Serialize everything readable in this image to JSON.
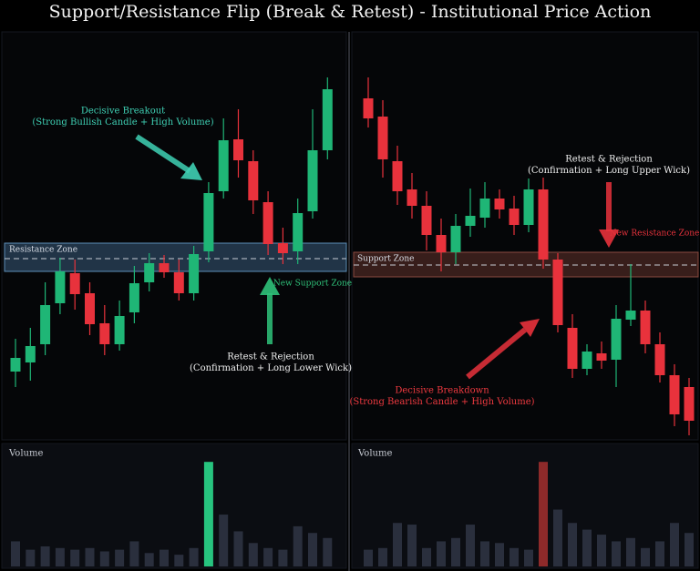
{
  "title": "Support/Resistance Flip (Break & Retest) - Institutional Price Action",
  "chart_data": [
    {
      "type": "candlestick",
      "ylim": [
        0,
        400
      ],
      "up_color": "#1fb676",
      "down_color": "#e8323c",
      "open": [
        72,
        82,
        102,
        147,
        180,
        158,
        125,
        102,
        137,
        170,
        191,
        181,
        158,
        204,
        270,
        327,
        303,
        258,
        213,
        204,
        248,
        315
      ],
      "close": [
        87,
        100,
        145,
        182,
        157,
        124,
        102,
        133,
        169,
        191,
        181,
        158,
        201,
        268,
        326,
        304,
        260,
        212,
        202,
        246,
        315,
        382
      ],
      "high": [
        108,
        120,
        170,
        197,
        195,
        170,
        145,
        150,
        188,
        202,
        200,
        195,
        210,
        280,
        350,
        360,
        315,
        270,
        230,
        262,
        360,
        395
      ],
      "low": [
        55,
        62,
        90,
        135,
        140,
        112,
        90,
        95,
        125,
        160,
        175,
        150,
        150,
        192,
        262,
        285,
        245,
        200,
        190,
        190,
        240,
        305
      ],
      "zone": {
        "label": "Resistance Zone",
        "new_label": "New Support Zone",
        "low": 182,
        "high": 213,
        "level": 196,
        "fill": "rgba(80,130,175,0.38)",
        "stroke": "#5d8fb8",
        "label_color": "#d8dde6",
        "new_label_color": "#2fc27a"
      },
      "annotations": [
        {
          "lines": [
            "Decisive Breakout",
            "(Strong Bullish Candle + High Volume)"
          ],
          "color": "#3fd0b4"
        },
        {
          "lines": [
            "Retest & Rejection",
            "(Confirmation + Long Lower Wick)"
          ],
          "color": "#f0f0f0"
        }
      ],
      "volume": {
        "label": "Volume",
        "ylim": [
          0,
          135
        ],
        "values": [
          30,
          20,
          24,
          22,
          20,
          22,
          18,
          20,
          30,
          16,
          20,
          14,
          22,
          125,
          62,
          42,
          28,
          22,
          20,
          48,
          40,
          34
        ],
        "colors": [
          "#2a2f3d",
          "#2a2f3d",
          "#2a2f3d",
          "#2a2f3d",
          "#2a2f3d",
          "#2a2f3d",
          "#2a2f3d",
          "#2a2f3d",
          "#2a2f3d",
          "#2a2f3d",
          "#2a2f3d",
          "#2a2f3d",
          "#2a2f3d",
          "#27c47f",
          "#2a2f3d",
          "#2a2f3d",
          "#2a2f3d",
          "#2a2f3d",
          "#2a2f3d",
          "#2a2f3d",
          "#2a2f3d",
          "#2a2f3d"
        ]
      }
    },
    {
      "type": "candlestick",
      "ylim": [
        0,
        400
      ],
      "up_color": "#1fb676",
      "down_color": "#e8323c",
      "open": [
        372,
        352,
        303,
        272,
        254,
        222,
        203,
        232,
        241,
        262,
        251,
        233,
        272,
        195,
        120,
        75,
        92,
        85,
        129,
        139,
        102,
        68,
        55
      ],
      "close": [
        350,
        305,
        270,
        254,
        222,
        203,
        232,
        243,
        262,
        250,
        233,
        272,
        195,
        123,
        75,
        94,
        84,
        130,
        139,
        102,
        68,
        25,
        18
      ],
      "high": [
        395,
        370,
        320,
        290,
        270,
        240,
        245,
        273,
        280,
        272,
        265,
        284,
        285,
        202,
        135,
        102,
        105,
        145,
        190,
        150,
        115,
        80,
        65
      ],
      "low": [
        340,
        285,
        255,
        240,
        205,
        182,
        190,
        220,
        230,
        240,
        222,
        225,
        185,
        115,
        65,
        68,
        75,
        55,
        122,
        92,
        60,
        12,
        2
      ],
      "zone": {
        "label": "Support Zone",
        "new_label": "New Resistance Zone",
        "low": 176,
        "high": 203,
        "level": 189,
        "fill": "rgba(140,70,60,0.38)",
        "stroke": "#8a4a40",
        "label_color": "#d8dde6",
        "new_label_color": "#e8323c"
      },
      "annotations": [
        {
          "lines": [
            "Retest & Rejection",
            "(Confirmation + Long Upper Wick)"
          ],
          "color": "#f0f0f0"
        },
        {
          "lines": [
            "Decisive Breakdown",
            "(Strong Bearish Candle + High Volume)"
          ],
          "color": "#f03a40"
        }
      ],
      "volume": {
        "label": "Volume",
        "ylim": [
          0,
          135
        ],
        "values": [
          20,
          22,
          52,
          50,
          22,
          30,
          34,
          50,
          30,
          28,
          22,
          20,
          125,
          68,
          52,
          44,
          38,
          30,
          34,
          22,
          30,
          52,
          40
        ],
        "colors": [
          "#2a2f3d",
          "#2a2f3d",
          "#2a2f3d",
          "#2a2f3d",
          "#2a2f3d",
          "#2a2f3d",
          "#2a2f3d",
          "#2a2f3d",
          "#2a2f3d",
          "#2a2f3d",
          "#2a2f3d",
          "#2a2f3d",
          "#8e2a2a",
          "#2a2f3d",
          "#2a2f3d",
          "#2a2f3d",
          "#2a2f3d",
          "#2a2f3d",
          "#2a2f3d",
          "#2a2f3d",
          "#2a2f3d",
          "#2a2f3d",
          "#2a2f3d"
        ]
      }
    }
  ]
}
